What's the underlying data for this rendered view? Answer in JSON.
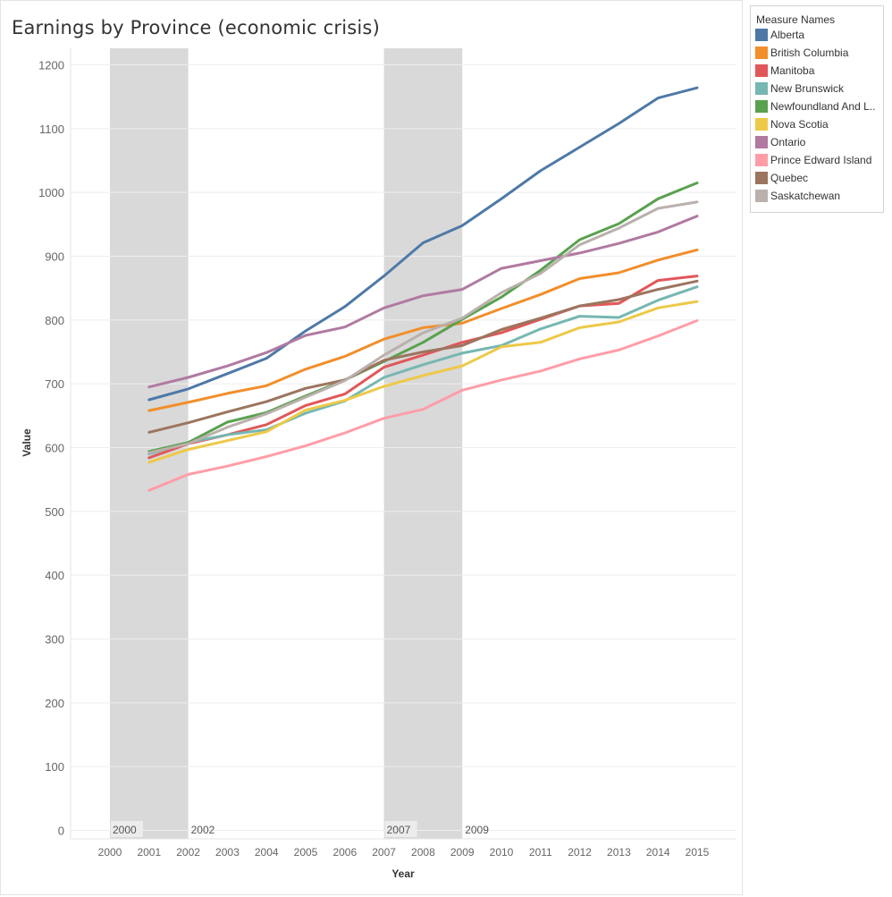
{
  "chart_data": {
    "type": "line",
    "title": "Earnings by Province (economic crisis)",
    "xlabel": "Year",
    "ylabel": "Value",
    "x": [
      2000,
      2001,
      2002,
      2003,
      2004,
      2005,
      2006,
      2007,
      2008,
      2009,
      2010,
      2011,
      2012,
      2013,
      2014,
      2015
    ],
    "xlim": [
      2000,
      2015
    ],
    "ylim": [
      0,
      1200
    ],
    "yticks": [
      0,
      100,
      200,
      300,
      400,
      500,
      600,
      700,
      800,
      900,
      1000,
      1100,
      1200
    ],
    "grid": true,
    "legend_position": "right",
    "legend_title": "Measure Names",
    "bands": [
      {
        "start": 2000,
        "end": 2002,
        "start_label": "2000",
        "end_label": "2002"
      },
      {
        "start": 2007,
        "end": 2009,
        "start_label": "2007",
        "end_label": "2009"
      }
    ],
    "series": [
      {
        "name": "Alberta",
        "legend_label": "Alberta",
        "color": "#4e79a7",
        "x": [
          2001,
          2002,
          2003,
          2004,
          2005,
          2006,
          2007,
          2008,
          2009,
          2010,
          2011,
          2012,
          2013,
          2014,
          2015
        ],
        "values": [
          675,
          692,
          716,
          740,
          783,
          821,
          869,
          921,
          948,
          990,
          1034,
          1071,
          1108,
          1148,
          1164
        ]
      },
      {
        "name": "British Columbia",
        "legend_label": "British Columbia",
        "color": "#f28e2b",
        "x": [
          2001,
          2002,
          2003,
          2004,
          2005,
          2006,
          2007,
          2008,
          2009,
          2010,
          2011,
          2012,
          2013,
          2014,
          2015
        ],
        "values": [
          658,
          671,
          685,
          697,
          723,
          743,
          770,
          788,
          795,
          818,
          840,
          865,
          874,
          894,
          910
        ]
      },
      {
        "name": "Manitoba",
        "legend_label": "Manitoba",
        "color": "#e15759",
        "x": [
          2001,
          2002,
          2003,
          2004,
          2005,
          2006,
          2007,
          2008,
          2009,
          2010,
          2011,
          2012,
          2013,
          2014,
          2015
        ],
        "values": [
          584,
          606,
          620,
          636,
          666,
          684,
          726,
          745,
          765,
          780,
          801,
          822,
          826,
          862,
          869
        ]
      },
      {
        "name": "New Brunswick",
        "legend_label": "New Brunswick",
        "color": "#76b7b2",
        "x": [
          2001,
          2002,
          2003,
          2004,
          2005,
          2006,
          2007,
          2008,
          2009,
          2010,
          2011,
          2012,
          2013,
          2014,
          2015
        ],
        "values": [
          590,
          608,
          620,
          628,
          654,
          673,
          710,
          730,
          748,
          760,
          786,
          806,
          804,
          831,
          852
        ]
      },
      {
        "name": "Newfoundland And Labrador",
        "legend_label": "Newfoundland And L..",
        "color": "#59a14f",
        "x": [
          2001,
          2002,
          2003,
          2004,
          2005,
          2006,
          2007,
          2008,
          2009,
          2010,
          2011,
          2012,
          2013,
          2014,
          2015
        ],
        "values": [
          594,
          608,
          640,
          655,
          681,
          706,
          735,
          765,
          801,
          836,
          878,
          926,
          951,
          990,
          1015
        ]
      },
      {
        "name": "Nova Scotia",
        "legend_label": "Nova Scotia",
        "color": "#edc948",
        "x": [
          2001,
          2002,
          2003,
          2004,
          2005,
          2006,
          2007,
          2008,
          2009,
          2010,
          2011,
          2012,
          2013,
          2014,
          2015
        ],
        "values": [
          577,
          597,
          611,
          625,
          659,
          674,
          696,
          713,
          728,
          758,
          765,
          788,
          797,
          819,
          829
        ]
      },
      {
        "name": "Ontario",
        "legend_label": "Ontario",
        "color": "#b07aa1",
        "x": [
          2001,
          2002,
          2003,
          2004,
          2005,
          2006,
          2007,
          2008,
          2009,
          2010,
          2011,
          2012,
          2013,
          2014,
          2015
        ],
        "values": [
          695,
          710,
          728,
          749,
          776,
          789,
          819,
          838,
          848,
          881,
          893,
          905,
          920,
          938,
          963
        ]
      },
      {
        "name": "Prince Edward Island",
        "legend_label": "Prince Edward Island",
        "color": "#ff9da7",
        "x": [
          2001,
          2002,
          2003,
          2004,
          2005,
          2006,
          2007,
          2008,
          2009,
          2010,
          2011,
          2012,
          2013,
          2014,
          2015
        ],
        "values": [
          533,
          558,
          571,
          586,
          603,
          623,
          646,
          660,
          690,
          706,
          720,
          739,
          753,
          775,
          799
        ]
      },
      {
        "name": "Quebec",
        "legend_label": "Quebec",
        "color": "#9c755f",
        "x": [
          2001,
          2002,
          2003,
          2004,
          2005,
          2006,
          2007,
          2008,
          2009,
          2010,
          2011,
          2012,
          2013,
          2014,
          2015
        ],
        "values": [
          624,
          639,
          656,
          672,
          693,
          706,
          737,
          750,
          760,
          785,
          803,
          822,
          832,
          848,
          861
        ]
      },
      {
        "name": "Saskatchewan",
        "legend_label": "Saskatchewan",
        "color": "#bab0ac",
        "x": [
          2001,
          2002,
          2003,
          2004,
          2005,
          2006,
          2007,
          2008,
          2009,
          2010,
          2011,
          2012,
          2013,
          2014,
          2015
        ],
        "values": [
          592,
          606,
          632,
          653,
          679,
          705,
          745,
          780,
          803,
          843,
          873,
          918,
          944,
          975,
          985
        ]
      }
    ]
  }
}
